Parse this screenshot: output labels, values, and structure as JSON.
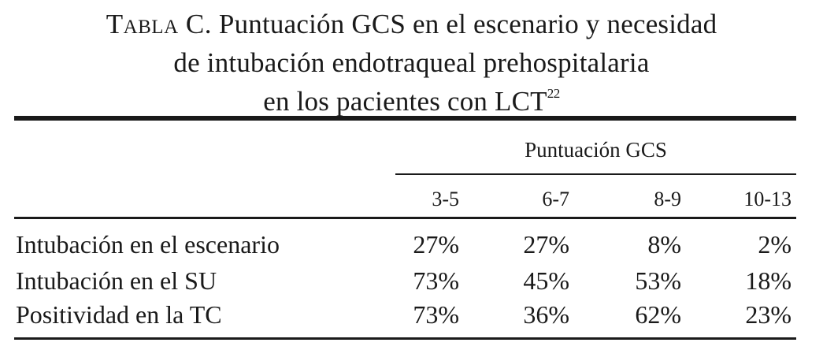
{
  "title": {
    "label": "Tabla C.",
    "line1_rest": " Puntuación GCS en el escenario y necesidad",
    "line2": "de intubación endotraqueal prehospitalaria",
    "line3": "en los pacientes con LCT",
    "ref": "22"
  },
  "table": {
    "group_header": "Puntuación GCS",
    "columns": [
      "3-5",
      "6-7",
      "8-9",
      "10-13"
    ],
    "rows": [
      {
        "label": "Intubación en el escenario",
        "values": [
          "27%",
          "27%",
          "8%",
          "2%"
        ]
      },
      {
        "label": "Intubación en el SU",
        "values": [
          "73%",
          "45%",
          "53%",
          "18%"
        ]
      },
      {
        "label": "Positividad en la TC",
        "values": [
          "73%",
          "36%",
          "62%",
          "23%"
        ]
      }
    ]
  }
}
